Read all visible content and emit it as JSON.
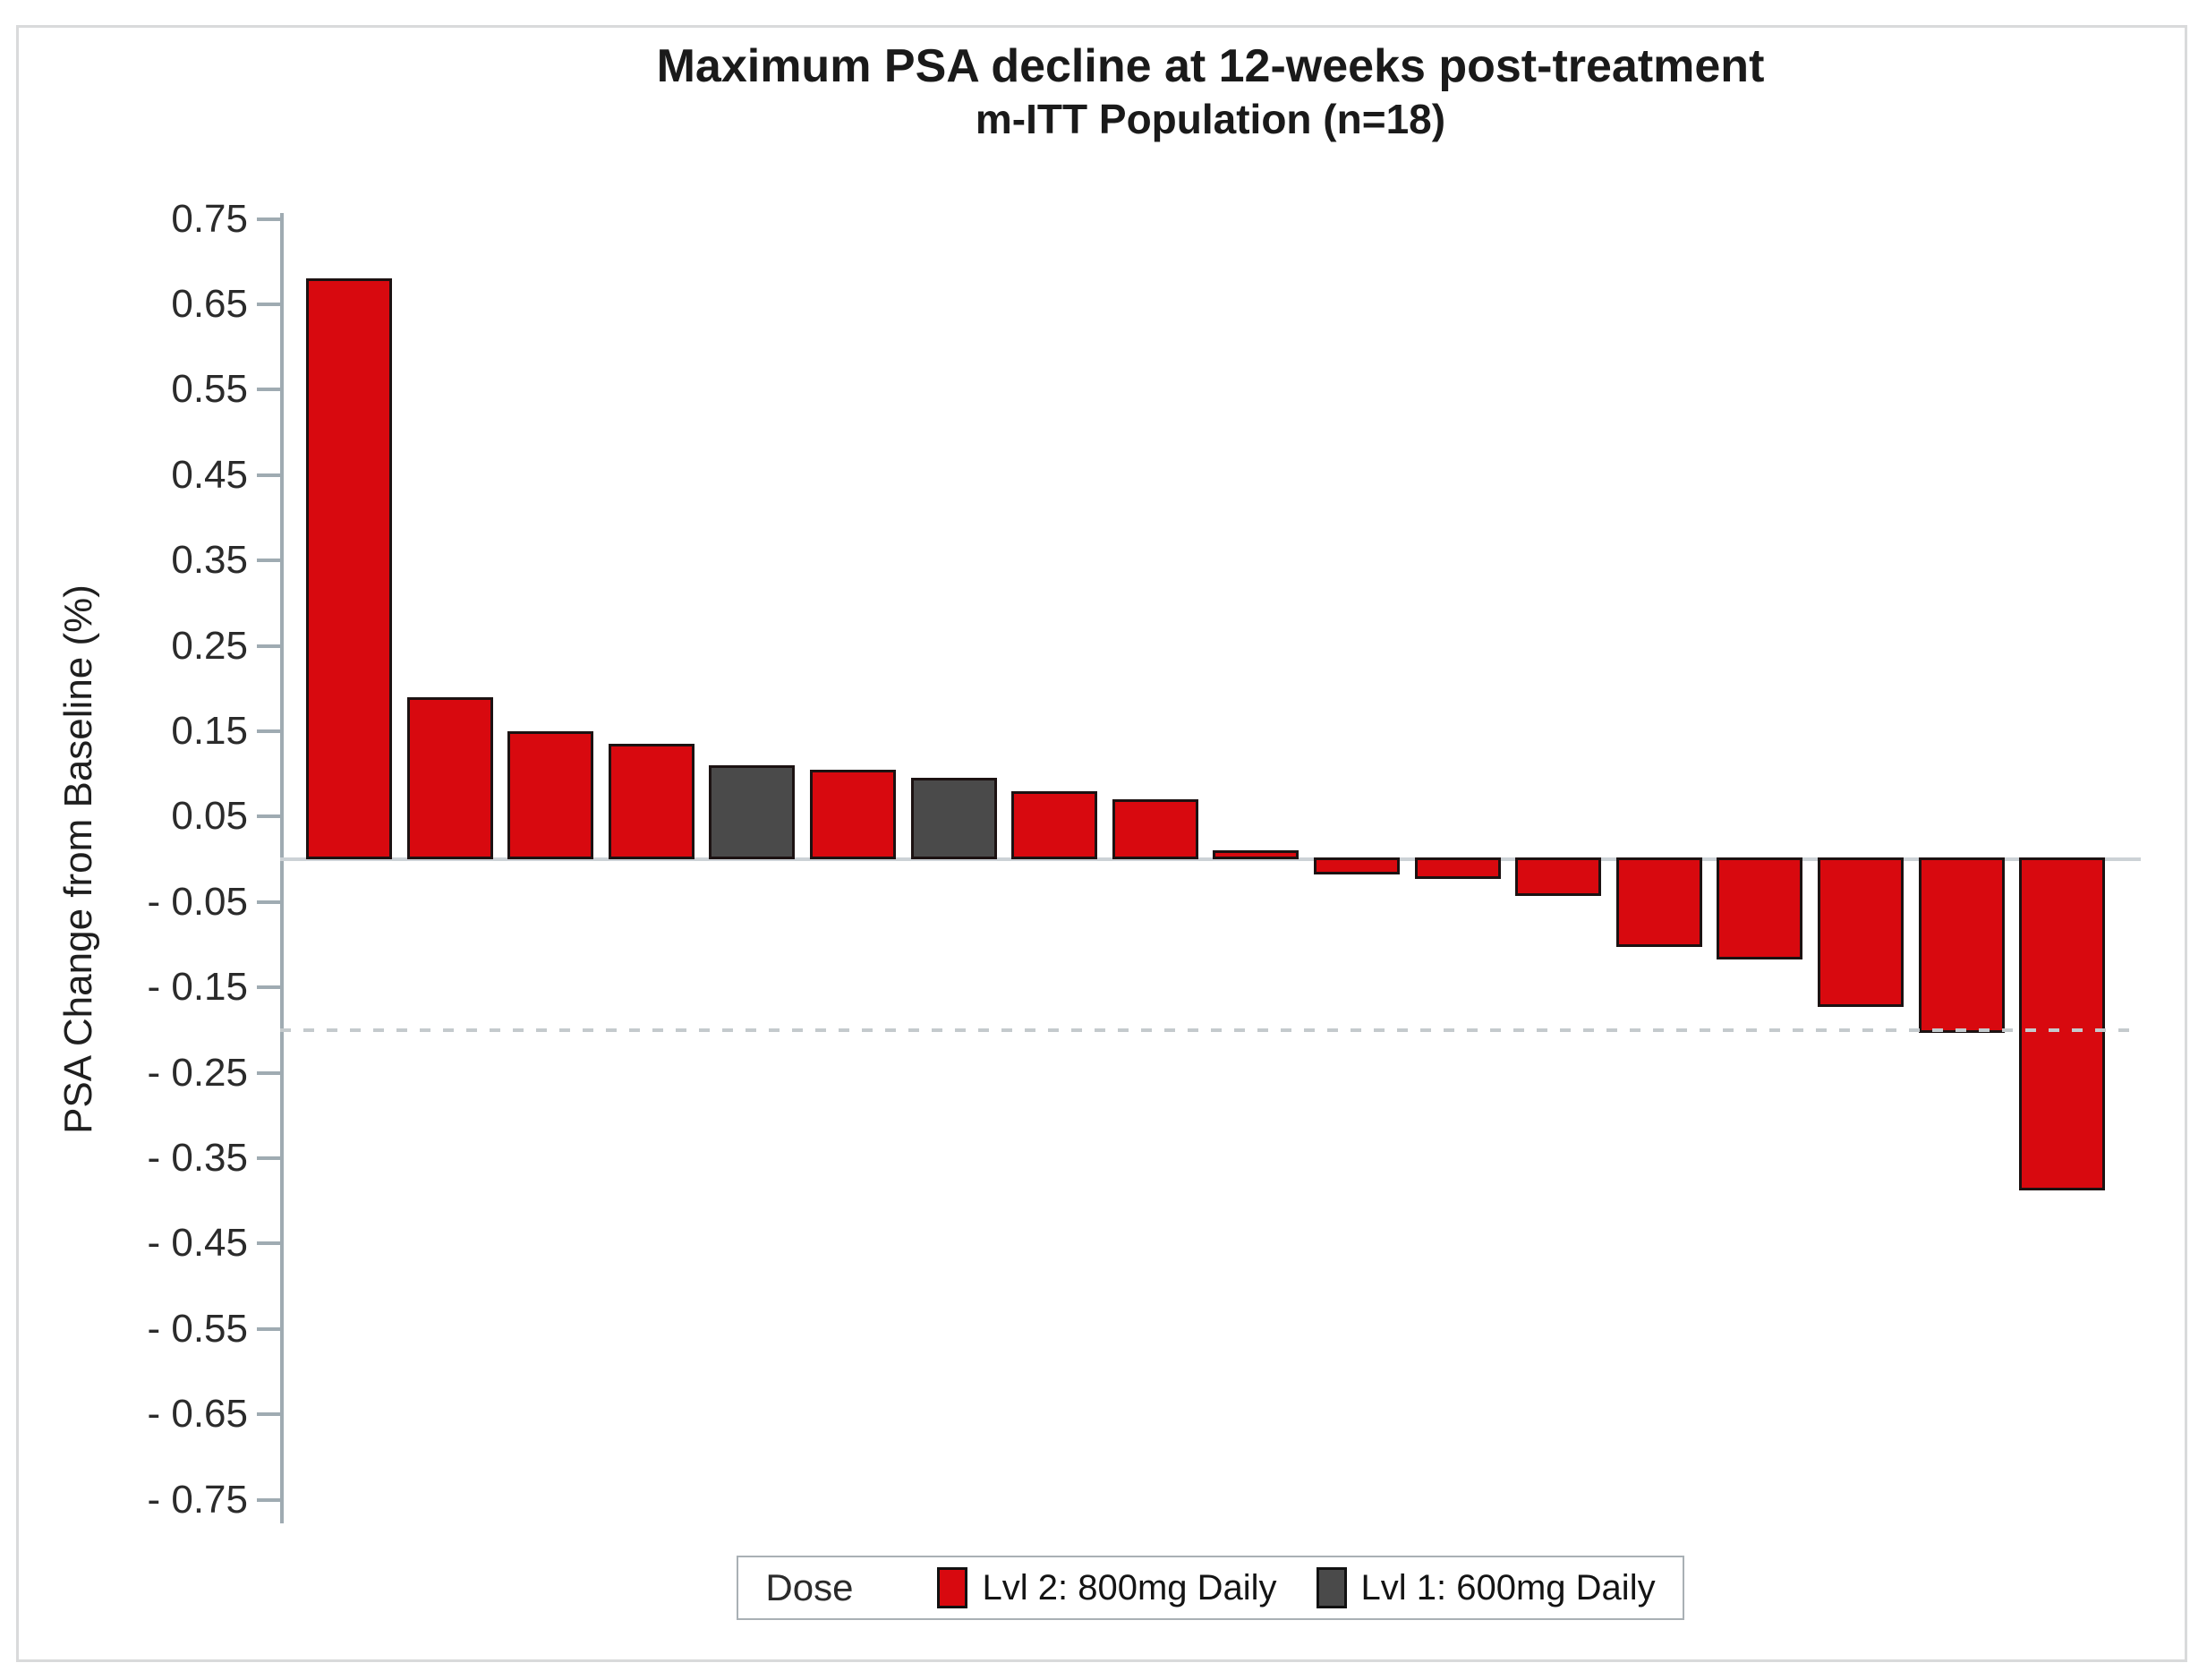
{
  "chart_data": {
    "type": "bar",
    "variant": "waterfall",
    "title": "Maximum PSA decline at 12-weeks post-treatment",
    "subtitle": "m-ITT Population (n=18)",
    "ylabel": "PSA Change from Baseline (%)",
    "xlabel": "",
    "n": 18,
    "ylim": [
      -0.75,
      0.75
    ],
    "grid": false,
    "baseline_y": 0,
    "reference_line": {
      "y": -0.2,
      "style": "dashed"
    },
    "yticks": [
      {
        "v": 0.75,
        "label": "0.75"
      },
      {
        "v": 0.65,
        "label": "0.65"
      },
      {
        "v": 0.55,
        "label": "0.55"
      },
      {
        "v": 0.45,
        "label": "0.45"
      },
      {
        "v": 0.35,
        "label": "0.35"
      },
      {
        "v": 0.25,
        "label": "0.25"
      },
      {
        "v": 0.15,
        "label": "0.15"
      },
      {
        "v": 0.05,
        "label": "0.05"
      },
      {
        "v": -0.05,
        "label": "- 0.05"
      },
      {
        "v": -0.15,
        "label": "- 0.15"
      },
      {
        "v": -0.25,
        "label": "- 0.25"
      },
      {
        "v": -0.35,
        "label": "- 0.35"
      },
      {
        "v": -0.45,
        "label": "- 0.45"
      },
      {
        "v": -0.55,
        "label": "- 0.55"
      },
      {
        "v": -0.65,
        "label": "- 0.65"
      },
      {
        "v": -0.75,
        "label": "- 0.75"
      }
    ],
    "dose_colors": {
      "lvl2": "#d8090f",
      "lvl1": "#4a4a4a"
    },
    "bars": [
      {
        "value": 0.68,
        "dose": "lvl2"
      },
      {
        "value": 0.19,
        "dose": "lvl2"
      },
      {
        "value": 0.15,
        "dose": "lvl2"
      },
      {
        "value": 0.135,
        "dose": "lvl2"
      },
      {
        "value": 0.11,
        "dose": "lvl1"
      },
      {
        "value": 0.105,
        "dose": "lvl2"
      },
      {
        "value": 0.095,
        "dose": "lvl1"
      },
      {
        "value": 0.08,
        "dose": "lvl2"
      },
      {
        "value": 0.07,
        "dose": "lvl2"
      },
      {
        "value": 0.01,
        "dose": "lvl2"
      },
      {
        "value": -0.02,
        "dose": "lvl2"
      },
      {
        "value": -0.025,
        "dose": "lvl2"
      },
      {
        "value": -0.045,
        "dose": "lvl2"
      },
      {
        "value": -0.105,
        "dose": "lvl2"
      },
      {
        "value": -0.12,
        "dose": "lvl2"
      },
      {
        "value": -0.175,
        "dose": "lvl2"
      },
      {
        "value": -0.205,
        "dose": "lvl2"
      },
      {
        "value": -0.39,
        "dose": "lvl2"
      }
    ],
    "legend": {
      "title": "Dose",
      "position": "bottom",
      "entries": [
        {
          "label": "Lvl 2: 800mg Daily",
          "dose": "lvl2",
          "color": "#d8090f"
        },
        {
          "label": "Lvl 1: 600mg Daily",
          "dose": "lvl1",
          "color": "#4a4a4a"
        }
      ]
    },
    "colors": {
      "axis": "#9fabb2",
      "zero_line": "#ccd2d6",
      "reference_line": "#c4cacd",
      "bar_border": "#1c1212",
      "text": "#1a1a1a",
      "frame_border": "#d9dadb"
    }
  }
}
